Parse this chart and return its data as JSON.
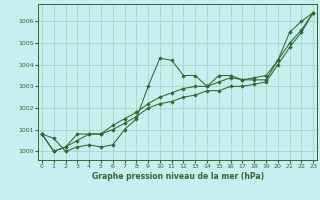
{
  "title": "Graphe pression niveau de la mer (hPa)",
  "background_color": "#c8eef0",
  "grid_color": "#a0d8c8",
  "line_color": "#2d6a2d",
  "xlim": [
    -0.3,
    23.3
  ],
  "ylim": [
    999.6,
    1006.8
  ],
  "yticks": [
    1000,
    1001,
    1002,
    1003,
    1004,
    1005,
    1006
  ],
  "xticks": [
    0,
    1,
    2,
    3,
    4,
    5,
    6,
    7,
    8,
    9,
    10,
    11,
    12,
    13,
    14,
    15,
    16,
    17,
    18,
    19,
    20,
    21,
    22,
    23
  ],
  "series1_x": [
    0,
    1,
    2,
    3,
    4,
    5,
    6,
    7,
    8,
    9,
    10,
    11,
    12,
    13,
    14,
    15,
    16,
    17,
    18,
    19,
    20,
    21,
    22,
    23
  ],
  "series1_y": [
    1000.8,
    1000.6,
    1000.0,
    1000.2,
    1000.3,
    1000.2,
    1000.3,
    1001.0,
    1001.5,
    1003.0,
    1004.3,
    1004.2,
    1003.5,
    1003.5,
    1003.0,
    1003.5,
    1003.5,
    1003.3,
    1003.3,
    1003.3,
    1004.2,
    1005.5,
    1006.0,
    1006.4
  ],
  "series2_x": [
    0,
    1,
    2,
    3,
    4,
    5,
    6,
    7,
    8,
    9,
    10,
    11,
    12,
    13,
    14,
    15,
    16,
    17,
    18,
    19,
    20,
    21,
    22,
    23
  ],
  "series2_y": [
    1000.8,
    1000.0,
    1000.2,
    1000.8,
    1000.8,
    1000.8,
    1001.2,
    1001.5,
    1001.8,
    1002.2,
    1002.5,
    1002.7,
    1002.9,
    1003.0,
    1003.0,
    1003.2,
    1003.4,
    1003.3,
    1003.4,
    1003.5,
    1004.2,
    1005.0,
    1005.6,
    1006.4
  ],
  "series3_x": [
    0,
    1,
    2,
    3,
    4,
    5,
    6,
    7,
    8,
    9,
    10,
    11,
    12,
    13,
    14,
    15,
    16,
    17,
    18,
    19,
    20,
    21,
    22,
    23
  ],
  "series3_y": [
    1000.8,
    1000.0,
    1000.2,
    1000.5,
    1000.8,
    1000.8,
    1001.0,
    1001.3,
    1001.6,
    1002.0,
    1002.2,
    1002.3,
    1002.5,
    1002.6,
    1002.8,
    1002.8,
    1003.0,
    1003.0,
    1003.1,
    1003.2,
    1004.0,
    1004.8,
    1005.5,
    1006.4
  ],
  "ylabel_fontsize": 5.0,
  "xlabel_fontsize": 5.5,
  "tick_fontsize": 4.5
}
